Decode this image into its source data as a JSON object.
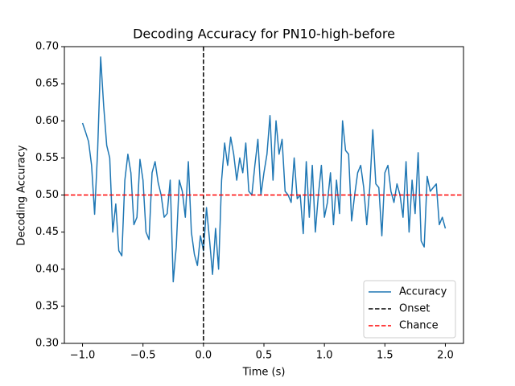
{
  "chart_data": {
    "type": "line",
    "title": "Decoding Accuracy for PN10-high-before",
    "x_label": "Time (s)",
    "y_label": "Decoding Accuracy",
    "x": [
      -1,
      -0.975,
      -0.95,
      -0.925,
      -0.9,
      -0.875,
      -0.85,
      -0.825,
      -0.8,
      -0.775,
      -0.75,
      -0.725,
      -0.7,
      -0.675,
      -0.65,
      -0.625,
      -0.6,
      -0.575,
      -0.55,
      -0.525,
      -0.5,
      -0.475,
      -0.45,
      -0.425,
      -0.4,
      -0.375,
      -0.35,
      -0.325,
      -0.3,
      -0.275,
      -0.25,
      -0.225,
      -0.2,
      -0.175,
      -0.15,
      -0.125,
      -0.1,
      -0.075,
      -0.05,
      -0.025,
      0,
      0.025,
      0.05,
      0.075,
      0.1,
      0.125,
      0.15,
      0.175,
      0.2,
      0.225,
      0.25,
      0.275,
      0.3,
      0.325,
      0.35,
      0.375,
      0.4,
      0.425,
      0.45,
      0.475,
      0.5,
      0.525,
      0.55,
      0.575,
      0.6,
      0.625,
      0.65,
      0.675,
      0.7,
      0.725,
      0.75,
      0.775,
      0.8,
      0.825,
      0.85,
      0.875,
      0.9,
      0.925,
      0.95,
      0.975,
      1,
      1.025,
      1.05,
      1.075,
      1.1,
      1.125,
      1.15,
      1.175,
      1.2,
      1.225,
      1.25,
      1.275,
      1.3,
      1.325,
      1.35,
      1.375,
      1.4,
      1.425,
      1.45,
      1.475,
      1.5,
      1.525,
      1.55,
      1.575,
      1.6,
      1.625,
      1.65,
      1.675,
      1.7,
      1.725,
      1.75,
      1.775,
      1.8,
      1.825,
      1.85,
      1.875,
      1.9,
      1.925,
      1.95,
      1.975,
      2
    ],
    "series": [
      {
        "name": "Accuracy",
        "color": "#1f77b4",
        "values": [
          0.597,
          0.585,
          0.572,
          0.54,
          0.474,
          0.56,
          0.686,
          0.62,
          0.567,
          0.55,
          0.45,
          0.488,
          0.425,
          0.418,
          0.52,
          0.555,
          0.53,
          0.46,
          0.47,
          0.548,
          0.52,
          0.45,
          0.44,
          0.53,
          0.545,
          0.517,
          0.5,
          0.47,
          0.475,
          0.52,
          0.383,
          0.43,
          0.52,
          0.505,
          0.47,
          0.545,
          0.45,
          0.42,
          0.405,
          0.445,
          0.425,
          0.483,
          0.44,
          0.393,
          0.455,
          0.4,
          0.52,
          0.57,
          0.54,
          0.578,
          0.555,
          0.52,
          0.55,
          0.53,
          0.57,
          0.505,
          0.5,
          0.54,
          0.575,
          0.5,
          0.53,
          0.555,
          0.607,
          0.52,
          0.6,
          0.555,
          0.575,
          0.505,
          0.5,
          0.49,
          0.55,
          0.495,
          0.5,
          0.448,
          0.545,
          0.47,
          0.54,
          0.45,
          0.5,
          0.54,
          0.47,
          0.49,
          0.53,
          0.46,
          0.52,
          0.475,
          0.6,
          0.56,
          0.555,
          0.465,
          0.5,
          0.53,
          0.54,
          0.51,
          0.46,
          0.51,
          0.588,
          0.515,
          0.51,
          0.445,
          0.53,
          0.54,
          0.505,
          0.49,
          0.515,
          0.5,
          0.47,
          0.545,
          0.45,
          0.52,
          0.475,
          0.557,
          0.438,
          0.43,
          0.525,
          0.505,
          0.51,
          0.515,
          0.46,
          0.47,
          0.455
        ]
      }
    ],
    "vlines": [
      {
        "name": "Onset",
        "x": 0,
        "color": "#000000"
      }
    ],
    "hlines": [
      {
        "name": "Chance",
        "y": 0.5,
        "color": "#ff0000"
      }
    ],
    "xlim": [
      -1.15,
      2.15
    ],
    "ylim": [
      0.3,
      0.7
    ],
    "xticks": [
      {
        "value": -1,
        "label": "−1.0"
      },
      {
        "value": -0.5,
        "label": "−0.5"
      },
      {
        "value": 0,
        "label": "0.0"
      },
      {
        "value": 0.5,
        "label": "0.5"
      },
      {
        "value": 1,
        "label": "1.0"
      },
      {
        "value": 1.5,
        "label": "1.5"
      },
      {
        "value": 2,
        "label": "2.0"
      }
    ],
    "yticks": [
      {
        "value": 0.3,
        "label": "0.30"
      },
      {
        "value": 0.35,
        "label": "0.35"
      },
      {
        "value": 0.4,
        "label": "0.40"
      },
      {
        "value": 0.45,
        "label": "0.45"
      },
      {
        "value": 0.5,
        "label": "0.50"
      },
      {
        "value": 0.55,
        "label": "0.55"
      },
      {
        "value": 0.6,
        "label": "0.60"
      },
      {
        "value": 0.65,
        "label": "0.65"
      },
      {
        "value": 0.7,
        "label": "0.70"
      }
    ],
    "legend": "lower right"
  }
}
